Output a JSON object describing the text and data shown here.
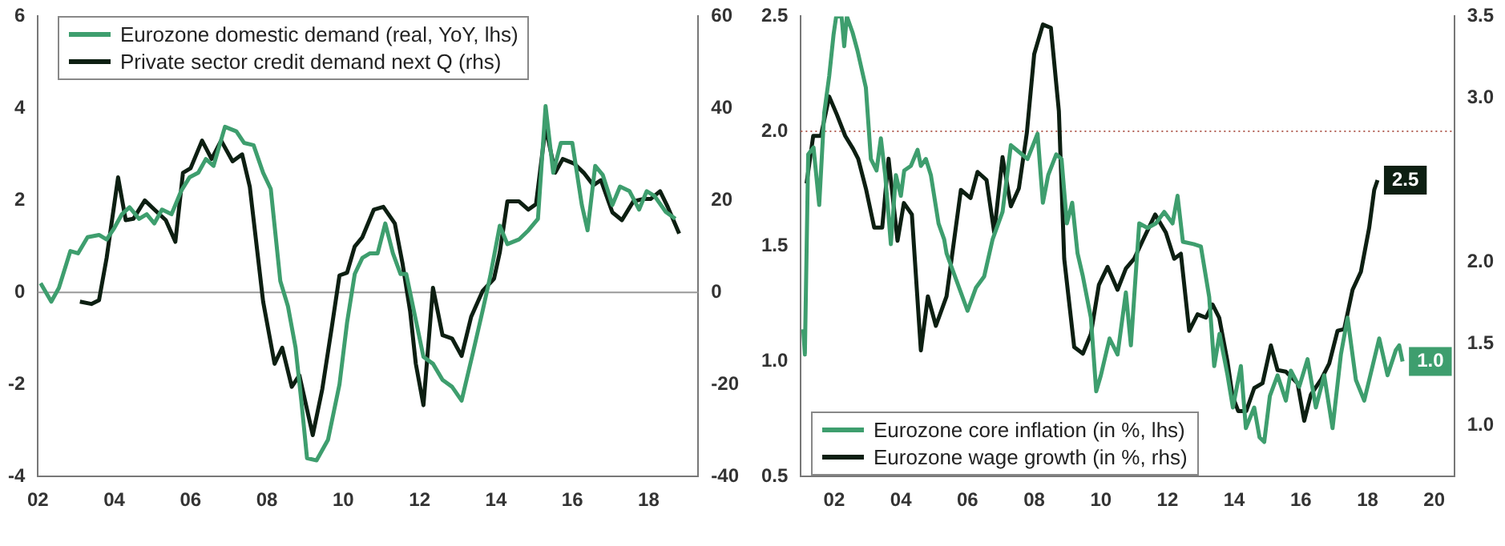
{
  "chart_data": [
    {
      "type": "line",
      "legend": "top left",
      "grid": false,
      "xlim": [
        2002,
        2019.3
      ],
      "xticks": [
        {
          "value": 2002,
          "label": "02"
        },
        {
          "value": 2004,
          "label": "04"
        },
        {
          "value": 2006,
          "label": "06"
        },
        {
          "value": 2008,
          "label": "08"
        },
        {
          "value": 2010,
          "label": "10"
        },
        {
          "value": 2012,
          "label": "12"
        },
        {
          "value": 2014,
          "label": "14"
        },
        {
          "value": 2016,
          "label": "16"
        },
        {
          "value": 2018,
          "label": "18"
        }
      ],
      "ylim": [
        -4,
        6
      ],
      "yticks": [
        -4,
        -2,
        0,
        2,
        4,
        6
      ],
      "y2lim": [
        -40,
        60
      ],
      "y2ticks": [
        -40,
        -20,
        0,
        20,
        40,
        60
      ],
      "ref_lines": [
        {
          "axis": "y",
          "value": 0,
          "color": "#999999",
          "line_style": "solid"
        }
      ],
      "series": [
        {
          "name": "Eurozone domestic demand (real, YoY, lhs)",
          "color": "#3e9e6e",
          "x": [
            2002.07,
            2002.35,
            2002.55,
            2002.85,
            2003.05,
            2003.3,
            2003.6,
            2003.8,
            2004.0,
            2004.2,
            2004.4,
            2004.65,
            2004.85,
            2005.05,
            2005.25,
            2005.5,
            2005.75,
            2005.97,
            2006.2,
            2006.4,
            2006.6,
            2006.9,
            2007.2,
            2007.4,
            2007.65,
            2007.9,
            2008.1,
            2008.35,
            2008.55,
            2008.75,
            2008.9,
            2009.05,
            2009.3,
            2009.6,
            2009.9,
            2010.1,
            2010.3,
            2010.5,
            2010.7,
            2010.9,
            2011.1,
            2011.3,
            2011.5,
            2011.65,
            2011.85,
            2012.1,
            2012.35,
            2012.6,
            2012.85,
            2013.1,
            2013.4,
            2013.65,
            2013.85,
            2014.1,
            2014.3,
            2014.6,
            2014.85,
            2015.1,
            2015.3,
            2015.5,
            2015.7,
            2016.0,
            2016.25,
            2016.4,
            2016.6,
            2016.8,
            2017.05,
            2017.25,
            2017.5,
            2017.75,
            2017.95,
            2018.15,
            2018.45,
            2018.7
          ],
          "values": [
            0.2,
            -0.2,
            0.1,
            0.9,
            0.85,
            1.2,
            1.25,
            1.15,
            1.4,
            1.7,
            1.85,
            1.6,
            1.7,
            1.5,
            1.8,
            1.7,
            2.2,
            2.5,
            2.6,
            2.9,
            2.75,
            3.6,
            3.5,
            3.25,
            3.2,
            2.6,
            2.25,
            0.25,
            -0.3,
            -1.2,
            -2.35,
            -3.6,
            -3.65,
            -3.2,
            -2.0,
            -0.65,
            0.4,
            0.75,
            0.85,
            0.85,
            1.5,
            0.85,
            0.4,
            0.4,
            -0.4,
            -1.4,
            -1.55,
            -1.9,
            -2.05,
            -2.35,
            -1.3,
            -0.4,
            0.35,
            1.45,
            1.05,
            1.15,
            1.35,
            1.6,
            4.05,
            2.6,
            3.25,
            3.25,
            1.9,
            1.35,
            2.75,
            2.55,
            1.9,
            2.3,
            2.2,
            1.8,
            2.2,
            2.1,
            1.75,
            1.6
          ]
        },
        {
          "name": "Private sector credit demand next Q (rhs)",
          "color": "#0d1f12",
          "axis": "y2",
          "x": [
            2003.1,
            2003.4,
            2003.6,
            2003.8,
            2004.1,
            2004.3,
            2004.5,
            2004.8,
            2005.05,
            2005.35,
            2005.6,
            2005.8,
            2006.0,
            2006.3,
            2006.55,
            2006.8,
            2007.1,
            2007.35,
            2007.55,
            2007.9,
            2008.2,
            2008.4,
            2008.65,
            2008.85,
            2009.2,
            2009.45,
            2009.7,
            2009.9,
            2010.1,
            2010.3,
            2010.5,
            2010.8,
            2011.05,
            2011.35,
            2011.55,
            2011.75,
            2011.9,
            2012.1,
            2012.35,
            2012.6,
            2012.85,
            2013.1,
            2013.35,
            2013.65,
            2013.95,
            2014.1,
            2014.3,
            2014.6,
            2014.85,
            2015.05,
            2015.3,
            2015.55,
            2015.75,
            2016.05,
            2016.3,
            2016.55,
            2016.75,
            2017.05,
            2017.3,
            2017.6,
            2017.85,
            2018.05,
            2018.3,
            2018.5,
            2018.8
          ],
          "values": [
            -2,
            -2.5,
            -1.7,
            7.5,
            25,
            15.7,
            16,
            20,
            18,
            15.7,
            11,
            26,
            27,
            33,
            29,
            33,
            28.5,
            30,
            23,
            -2,
            -15.5,
            -12,
            -20.5,
            -18,
            -31,
            -21,
            -7.5,
            3.7,
            4.3,
            10,
            12,
            18,
            18.6,
            15,
            6.4,
            -4,
            -15.5,
            -24.5,
            1,
            -9.3,
            -10,
            -13.8,
            -5.3,
            0.3,
            3,
            8.7,
            19.8,
            19.8,
            18,
            19.2,
            36,
            26,
            29,
            28,
            26,
            23.3,
            24.4,
            17.4,
            15.7,
            19.8,
            20.3,
            20.3,
            22,
            18.6,
            12.8
          ]
        }
      ]
    },
    {
      "type": "line",
      "legend": "bottom left",
      "grid": false,
      "xlim": [
        2001,
        2020.6
      ],
      "xticks": [
        {
          "value": 2002,
          "label": "02"
        },
        {
          "value": 2004,
          "label": "04"
        },
        {
          "value": 2006,
          "label": "06"
        },
        {
          "value": 2008,
          "label": "08"
        },
        {
          "value": 2010,
          "label": "10"
        },
        {
          "value": 2012,
          "label": "12"
        },
        {
          "value": 2014,
          "label": "14"
        },
        {
          "value": 2016,
          "label": "16"
        },
        {
          "value": 2018,
          "label": "18"
        },
        {
          "value": 2020,
          "label": "20"
        }
      ],
      "ylim": [
        0.5,
        2.5
      ],
      "yticks": [
        {
          "value": 0.5,
          "label": "0.5"
        },
        {
          "value": 1.0,
          "label": "1.0"
        },
        {
          "value": 1.5,
          "label": "1.5"
        },
        {
          "value": 2.0,
          "label": "2.0"
        },
        {
          "value": 2.5,
          "label": "2.5"
        }
      ],
      "y2lim": [
        0.69,
        3.5
      ],
      "y2ticks": [
        {
          "value": 1.0,
          "label": "1.0"
        },
        {
          "value": 1.5,
          "label": "1.5"
        },
        {
          "value": 2.0,
          "label": "2.0"
        },
        {
          "value": 3.0,
          "label": "3.0"
        },
        {
          "value": 3.5,
          "label": "3.5"
        }
      ],
      "ref_lines": [
        {
          "axis": "y",
          "value": 2.0,
          "color": "#b5655a",
          "line_style": "dotted"
        }
      ],
      "series": [
        {
          "name": "Eurozone core inflation (in %, lhs)",
          "color": "#3e9e6e",
          "x": [
            2001.07,
            2001.12,
            2001.22,
            2001.38,
            2001.55,
            2001.7,
            2001.85,
            2001.98,
            2002.06,
            2002.22,
            2002.3,
            2002.38,
            2002.55,
            2002.7,
            2002.95,
            2003.1,
            2003.27,
            2003.4,
            2003.53,
            2003.7,
            2003.85,
            2004.0,
            2004.1,
            2004.3,
            2004.5,
            2004.6,
            2004.75,
            2004.9,
            2005.13,
            2005.3,
            2005.37,
            2005.8,
            2006.0,
            2006.25,
            2006.5,
            2006.75,
            2007.05,
            2007.3,
            2007.55,
            2007.8,
            2008.1,
            2008.26,
            2008.42,
            2008.66,
            2008.82,
            2008.98,
            2009.14,
            2009.3,
            2009.46,
            2009.7,
            2009.86,
            2010.0,
            2010.26,
            2010.5,
            2010.75,
            2010.9,
            2011.15,
            2011.4,
            2011.65,
            2011.9,
            2012.15,
            2012.3,
            2012.46,
            2012.78,
            2013.0,
            2013.25,
            2013.4,
            2013.56,
            2013.8,
            2013.96,
            2014.2,
            2014.35,
            2014.6,
            2014.76,
            2014.9,
            2015.07,
            2015.3,
            2015.55,
            2015.7,
            2015.95,
            2016.2,
            2016.45,
            2016.7,
            2016.95,
            2017.2,
            2017.4,
            2017.65,
            2017.9,
            2018.15,
            2018.35,
            2018.6,
            2018.85,
            2018.95,
            2019.05
          ],
          "values": [
            1.14,
            1.03,
            1.9,
            1.93,
            1.68,
            2.08,
            2.24,
            2.42,
            2.5,
            2.5,
            2.37,
            2.5,
            2.43,
            2.35,
            2.19,
            1.88,
            1.83,
            1.97,
            1.81,
            1.51,
            1.81,
            1.72,
            1.83,
            1.85,
            1.92,
            1.85,
            1.88,
            1.81,
            1.6,
            1.53,
            1.47,
            1.3,
            1.22,
            1.32,
            1.37,
            1.53,
            1.65,
            1.94,
            1.91,
            1.88,
            1.99,
            1.69,
            1.81,
            1.9,
            1.88,
            1.6,
            1.69,
            1.47,
            1.37,
            1.19,
            0.87,
            0.94,
            1.1,
            1.03,
            1.3,
            1.07,
            1.6,
            1.58,
            1.6,
            1.65,
            1.6,
            1.72,
            1.52,
            1.51,
            1.5,
            1.28,
            0.98,
            1.12,
            0.94,
            0.8,
            0.98,
            0.71,
            0.8,
            0.67,
            0.65,
            0.85,
            0.94,
            0.83,
            0.96,
            0.89,
            1.01,
            0.8,
            0.94,
            0.71,
            1.03,
            1.19,
            0.92,
            0.83,
            0.98,
            1.1,
            0.94,
            1.05,
            1.07,
            1.0
          ],
          "value_labels": [
            null,
            null,
            null,
            null,
            null,
            null,
            null,
            null,
            null,
            null,
            null,
            null,
            null,
            null,
            null,
            null,
            null,
            null,
            null,
            null,
            null,
            null,
            null,
            null,
            null,
            null,
            null,
            null,
            null,
            null,
            null,
            null,
            null,
            null,
            null,
            null,
            null,
            null,
            null,
            null,
            null,
            null,
            null,
            null,
            null,
            null,
            null,
            null,
            null,
            null,
            null,
            null,
            null,
            null,
            null,
            null,
            null,
            null,
            null,
            null,
            null,
            null,
            null,
            null,
            null,
            null,
            null,
            null,
            null,
            null,
            null,
            null,
            null,
            null,
            null,
            null,
            null,
            null,
            null,
            null,
            null,
            null,
            null,
            null,
            null,
            null,
            null,
            null,
            null,
            null,
            null,
            null,
            null,
            "1.0"
          ]
        },
        {
          "name": "Eurozone wage growth (in %, rhs)",
          "color": "#0d1f12",
          "axis": "y2",
          "x": [
            2001.17,
            2001.37,
            2001.6,
            2001.85,
            2002.08,
            2002.33,
            2002.57,
            2002.72,
            2002.96,
            2003.2,
            2003.44,
            2003.63,
            2003.9,
            2004.09,
            2004.33,
            2004.6,
            2004.81,
            2005.05,
            2005.37,
            2005.8,
            2006.09,
            2006.3,
            2006.57,
            2006.8,
            2007.05,
            2007.3,
            2007.54,
            2007.78,
            2008.0,
            2008.26,
            2008.5,
            2008.74,
            2008.9,
            2009.2,
            2009.46,
            2009.7,
            2009.94,
            2010.2,
            2010.5,
            2010.75,
            2011.0,
            2011.3,
            2011.63,
            2011.95,
            2012.2,
            2012.4,
            2012.65,
            2012.9,
            2013.15,
            2013.35,
            2013.55,
            2013.8,
            2013.95,
            2014.12,
            2014.36,
            2014.6,
            2014.85,
            2015.1,
            2015.3,
            2015.55,
            2015.9,
            2016.1,
            2016.3,
            2016.6,
            2016.85,
            2017.1,
            2017.3,
            2017.55,
            2017.8,
            2018.05,
            2018.2,
            2018.3
          ],
          "values": [
            2.48,
            2.77,
            2.77,
            3.01,
            2.9,
            2.77,
            2.69,
            2.63,
            2.44,
            2.21,
            2.21,
            2.63,
            2.13,
            2.36,
            2.29,
            1.46,
            1.79,
            1.61,
            1.79,
            2.44,
            2.39,
            2.55,
            2.5,
            2.18,
            2.64,
            2.34,
            2.45,
            2.79,
            3.27,
            3.45,
            3.43,
            2.92,
            2.02,
            1.48,
            1.44,
            1.56,
            1.86,
            1.97,
            1.83,
            1.96,
            2.02,
            2.15,
            2.29,
            2.18,
            2.02,
            2.05,
            1.58,
            1.68,
            1.66,
            1.74,
            1.66,
            1.39,
            1.18,
            1.09,
            1.09,
            1.23,
            1.26,
            1.49,
            1.34,
            1.33,
            1.26,
            1.03,
            1.19,
            1.28,
            1.38,
            1.58,
            1.59,
            1.83,
            1.94,
            2.21,
            2.44,
            2.5
          ],
          "value_labels": [
            null,
            null,
            null,
            null,
            null,
            null,
            null,
            null,
            null,
            null,
            null,
            null,
            null,
            null,
            null,
            null,
            null,
            null,
            null,
            null,
            null,
            null,
            null,
            null,
            null,
            null,
            null,
            null,
            null,
            null,
            null,
            null,
            null,
            null,
            null,
            null,
            null,
            null,
            null,
            null,
            null,
            null,
            null,
            null,
            null,
            null,
            null,
            null,
            null,
            null,
            null,
            null,
            null,
            null,
            null,
            null,
            null,
            null,
            null,
            null,
            null,
            null,
            null,
            null,
            null,
            null,
            null,
            null,
            null,
            null,
            null,
            "2.5"
          ]
        }
      ]
    }
  ]
}
